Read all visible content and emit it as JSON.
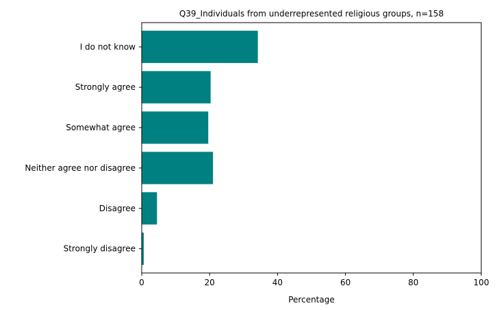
{
  "chart_data": {
    "type": "bar",
    "orientation": "horizontal",
    "title": "Q39_Individuals from underrepresented religious groups, n=158",
    "xlabel": "Percentage",
    "ylabel": "",
    "xlim": [
      0,
      100
    ],
    "xticks": [
      0,
      20,
      40,
      60,
      80,
      100
    ],
    "grid": false,
    "legend": "none",
    "categories": [
      "I do not know",
      "Strongly agree",
      "Somewhat agree",
      "Neither agree nor disagree",
      "Disagree",
      "Strongly disagree"
    ],
    "values": [
      34.2,
      20.3,
      19.6,
      21.0,
      4.5,
      0.6
    ],
    "color": "#008080"
  }
}
